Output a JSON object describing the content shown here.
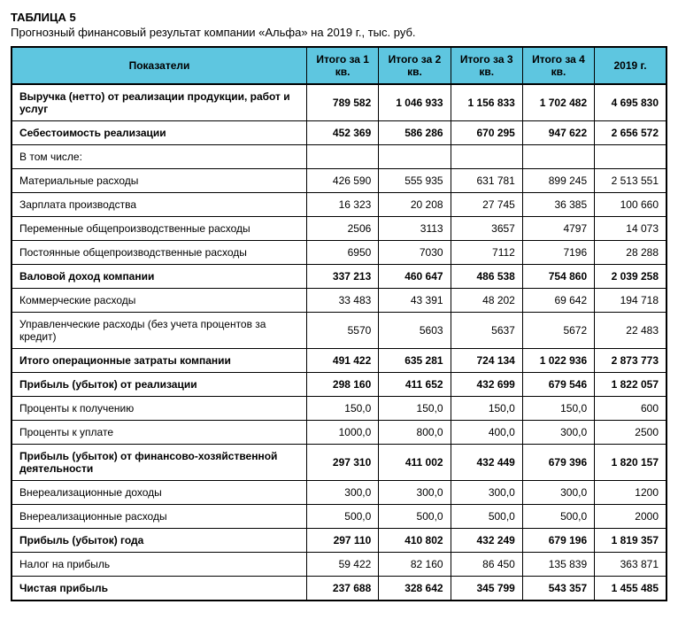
{
  "title": {
    "number": "ТАБЛИЦА 5",
    "subtitle": "Прогнозный финансовый результат компании «Альфа» на 2019 г., тыс. руб."
  },
  "columns": [
    "Показатели",
    "Итого за 1 кв.",
    "Итого за 2 кв.",
    "Итого за 3 кв.",
    "Итого за 4 кв.",
    "2019 г."
  ],
  "rows": [
    {
      "bold": true,
      "label": "Выручка (нетто) от реализации продукции, работ и услуг",
      "cells": [
        "789 582",
        "1 046 933",
        "1 156 833",
        "1 702 482",
        "4 695 830"
      ]
    },
    {
      "bold": true,
      "label": "Себестоимость реализации",
      "cells": [
        "452 369",
        "586 286",
        "670 295",
        "947 622",
        "2 656 572"
      ]
    },
    {
      "bold": false,
      "label": "В том числе:",
      "cells": [
        "",
        "",
        "",
        "",
        ""
      ]
    },
    {
      "bold": false,
      "label": "Материальные расходы",
      "cells": [
        "426 590",
        "555 935",
        "631 781",
        "899 245",
        "2 513 551"
      ]
    },
    {
      "bold": false,
      "label": "Зарплата производства",
      "cells": [
        "16 323",
        "20 208",
        "27 745",
        "36 385",
        "100 660"
      ]
    },
    {
      "bold": false,
      "label": "Переменные общепроизводственные расходы",
      "cells": [
        "2506",
        "3113",
        "3657",
        "4797",
        "14 073"
      ]
    },
    {
      "bold": false,
      "label": "Постоянные общепроизводственные расходы",
      "cells": [
        "6950",
        "7030",
        "7112",
        "7196",
        "28 288"
      ]
    },
    {
      "bold": true,
      "label": "Валовой доход компании",
      "cells": [
        "337 213",
        "460 647",
        "486 538",
        "754 860",
        "2 039 258"
      ]
    },
    {
      "bold": false,
      "label": "Коммерческие расходы",
      "cells": [
        "33 483",
        "43 391",
        "48 202",
        "69 642",
        "194 718"
      ]
    },
    {
      "bold": false,
      "label": "Управленческие расходы (без учета процентов за кредит)",
      "cells": [
        "5570",
        "5603",
        "5637",
        "5672",
        "22 483"
      ]
    },
    {
      "bold": true,
      "label": "Итого операционные затраты компании",
      "cells": [
        "491 422",
        "635 281",
        "724 134",
        "1 022 936",
        "2 873 773"
      ]
    },
    {
      "bold": true,
      "label": "Прибыль (убыток) от реализации",
      "cells": [
        "298 160",
        "411 652",
        "432 699",
        "679 546",
        "1 822 057"
      ]
    },
    {
      "bold": false,
      "label": "Проценты к получению",
      "cells": [
        "150,0",
        "150,0",
        "150,0",
        "150,0",
        "600"
      ]
    },
    {
      "bold": false,
      "label": "Проценты к уплате",
      "cells": [
        "1000,0",
        "800,0",
        "400,0",
        "300,0",
        "2500"
      ]
    },
    {
      "bold": true,
      "label": "Прибыль (убыток) от финансово-хозяйственной деятельности",
      "cells": [
        "297 310",
        "411 002",
        "432 449",
        "679 396",
        "1 820 157"
      ]
    },
    {
      "bold": false,
      "label": "Внереализационные доходы",
      "cells": [
        "300,0",
        "300,0",
        "300,0",
        "300,0",
        "1200"
      ]
    },
    {
      "bold": false,
      "label": "Внереализационные расходы",
      "cells": [
        "500,0",
        "500,0",
        "500,0",
        "500,0",
        "2000"
      ]
    },
    {
      "bold": true,
      "label": "Прибыль (убыток) года",
      "cells": [
        "297 110",
        "410 802",
        "432 249",
        "679 196",
        "1 819 357"
      ]
    },
    {
      "bold": false,
      "label": "Налог на прибыль",
      "cells": [
        "59 422",
        "82 160",
        "86 450",
        "135 839",
        "363 871"
      ]
    },
    {
      "bold": true,
      "label": "Чистая прибыль",
      "cells": [
        "237 688",
        "328 642",
        "345 799",
        "543 357",
        "1 455 485"
      ]
    }
  ],
  "style": {
    "header_bg": "#5ec6e0",
    "border_color": "#000000",
    "font_family": "Arial",
    "base_fontsize": 12,
    "title_fontsize": 13,
    "background": "#ffffff",
    "text_color": "#000000",
    "num_align": "right",
    "label_align": "left"
  }
}
